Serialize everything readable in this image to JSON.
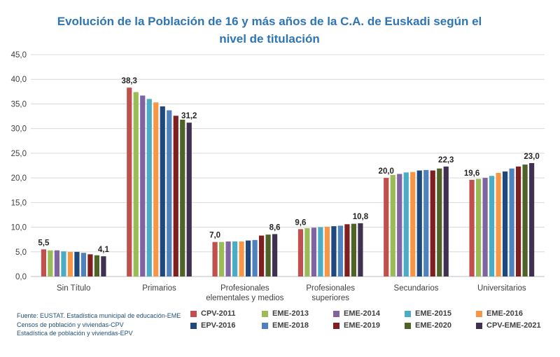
{
  "title_line1": "Evolución de la Población de 16 y más años de la C.A. de Euskadi según el",
  "title_line2": "nivel de titulación",
  "source_lines": [
    "Fuente: EUSTAT. Estadística municipal de educación-EME",
    "Censos de población y viviendas-CPV",
    "Estadística de población y viviendas-EPV"
  ],
  "chart_data": {
    "type": "bar",
    "title": "Evolución de la Población de 16 y más años de la C.A. de Euskadi según el nivel de titulación",
    "xlabel": "",
    "ylabel": "",
    "ylim": [
      0,
      45
    ],
    "yticks": [
      "0,0",
      "5,0",
      "10,0",
      "15,0",
      "20,0",
      "25,0",
      "30,0",
      "35,0",
      "40,0",
      "45,0"
    ],
    "grid": true,
    "legend_position": "bottom-right",
    "categories": [
      [
        "Sin Título"
      ],
      [
        "Primarios"
      ],
      [
        "Profesionales",
        "elementales y medios"
      ],
      [
        "Profesionales",
        "superiores"
      ],
      [
        "Secundarios"
      ],
      [
        "Universitarios"
      ]
    ],
    "series": [
      {
        "name": "CPV-2011",
        "color": "#c0504d",
        "values": [
          5.5,
          38.3,
          7.0,
          9.6,
          20.0,
          19.6
        ]
      },
      {
        "name": "EME-2013",
        "color": "#9bbb59",
        "values": [
          5.3,
          37.4,
          7.0,
          9.8,
          20.6,
          19.8
        ]
      },
      {
        "name": "EME-2014",
        "color": "#8064a2",
        "values": [
          5.3,
          36.7,
          7.1,
          9.9,
          20.8,
          20.0
        ]
      },
      {
        "name": "EME-2015",
        "color": "#4bacc6",
        "values": [
          5.1,
          36.0,
          7.1,
          10.0,
          21.1,
          20.4
        ]
      },
      {
        "name": "EME-2016",
        "color": "#f79646",
        "values": [
          5.0,
          35.3,
          7.1,
          10.1,
          21.2,
          21.0
        ]
      },
      {
        "name": "EPV-2016",
        "color": "#1f497d",
        "values": [
          5.0,
          34.5,
          7.3,
          10.2,
          21.5,
          21.3
        ]
      },
      {
        "name": "EME-2018",
        "color": "#4f81bd",
        "values": [
          4.8,
          33.7,
          7.4,
          10.3,
          21.6,
          21.9
        ]
      },
      {
        "name": "EME-2019",
        "color": "#7f1f1f",
        "values": [
          4.5,
          32.6,
          8.3,
          10.6,
          21.5,
          22.3
        ]
      },
      {
        "name": "EME-2020",
        "color": "#4f6228",
        "values": [
          4.3,
          31.8,
          8.5,
          10.7,
          21.9,
          22.7
        ]
      },
      {
        "name": "CPV-EME-2021",
        "color": "#403151",
        "values": [
          4.1,
          31.2,
          8.6,
          10.8,
          22.3,
          23.0
        ]
      }
    ],
    "data_labels": [
      {
        "category": 0,
        "series": 0,
        "text": "5,5"
      },
      {
        "category": 0,
        "series": 9,
        "text": "4,1"
      },
      {
        "category": 1,
        "series": 0,
        "text": "38,3"
      },
      {
        "category": 1,
        "series": 9,
        "text": "31,2"
      },
      {
        "category": 2,
        "series": 0,
        "text": "7,0"
      },
      {
        "category": 2,
        "series": 9,
        "text": "8,6"
      },
      {
        "category": 3,
        "series": 0,
        "text": "9,6"
      },
      {
        "category": 3,
        "series": 9,
        "text": "10,8"
      },
      {
        "category": 4,
        "series": 0,
        "text": "20,0"
      },
      {
        "category": 4,
        "series": 9,
        "text": "22,3"
      },
      {
        "category": 5,
        "series": 0,
        "text": "19,6"
      },
      {
        "category": 5,
        "series": 9,
        "text": "23,0"
      }
    ]
  }
}
